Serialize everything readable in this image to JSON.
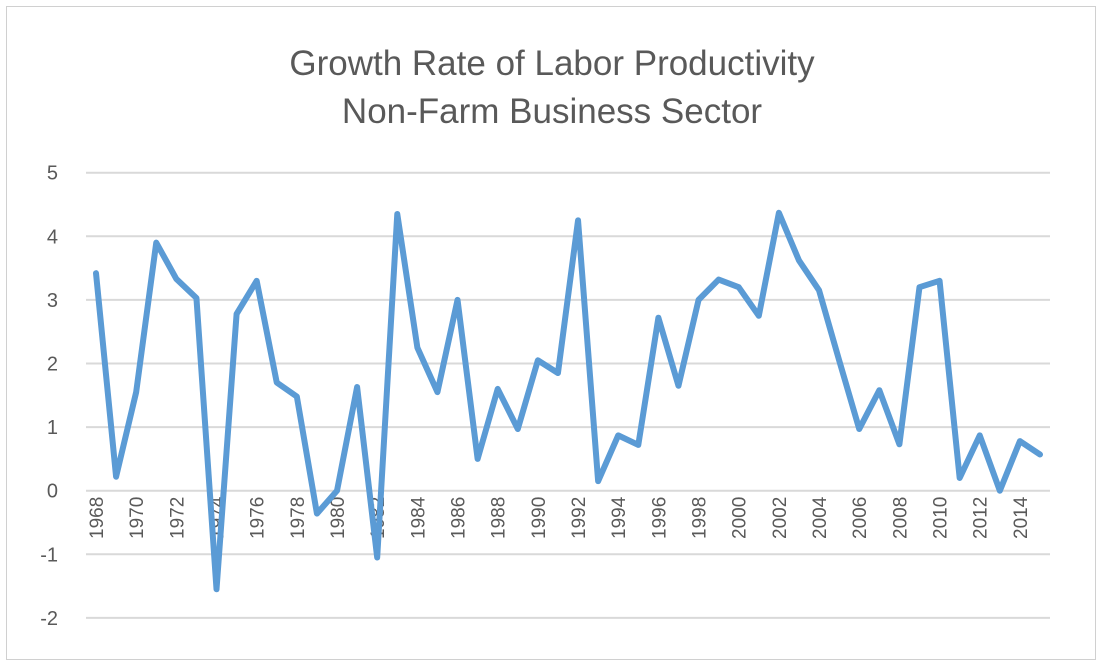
{
  "chart_data": {
    "type": "line",
    "title": "Growth Rate of Labor Productivity",
    "subtitle": "Non-Farm Business Sector",
    "xlabel": "",
    "ylabel": "",
    "ylim": [
      -2,
      5
    ],
    "yticks": [
      "5",
      "4",
      "3",
      "2",
      "1",
      "0",
      "-1",
      "-2"
    ],
    "grid": true,
    "legend": "none",
    "color": "#5b9bd5",
    "x": [
      1968,
      1969,
      1970,
      1971,
      1972,
      1973,
      1974,
      1975,
      1976,
      1977,
      1978,
      1979,
      1980,
      1981,
      1982,
      1983,
      1984,
      1985,
      1986,
      1987,
      1988,
      1989,
      1990,
      1991,
      1992,
      1993,
      1994,
      1995,
      1996,
      1997,
      1998,
      1999,
      2000,
      2001,
      2002,
      2003,
      2004,
      2005,
      2006,
      2007,
      2008,
      2009,
      2010,
      2011,
      2012,
      2013,
      2014,
      2015
    ],
    "xtick_labels": [
      "1968",
      "1970",
      "1972",
      "1974",
      "1976",
      "1978",
      "1980",
      "1982",
      "1984",
      "1986",
      "1988",
      "1990",
      "1992",
      "1994",
      "1996",
      "1998",
      "2000",
      "2002",
      "2004",
      "2006",
      "2008",
      "2010",
      "2012",
      "2014"
    ],
    "series": [
      {
        "values": [
          3.42,
          0.22,
          1.55,
          3.9,
          3.33,
          3.03,
          -1.55,
          2.78,
          3.3,
          1.7,
          1.48,
          -0.36,
          0.0,
          1.63,
          -1.05,
          4.35,
          2.25,
          1.55,
          3.0,
          0.5,
          1.6,
          0.97,
          2.05,
          1.85,
          4.25,
          0.15,
          0.87,
          0.72,
          2.72,
          1.65,
          3.0,
          3.32,
          3.2,
          2.75,
          4.37,
          3.62,
          3.15,
          2.05,
          0.97,
          1.58,
          0.73,
          3.2,
          3.3,
          0.2,
          0.87,
          0.0,
          0.78,
          0.57
        ]
      }
    ]
  }
}
